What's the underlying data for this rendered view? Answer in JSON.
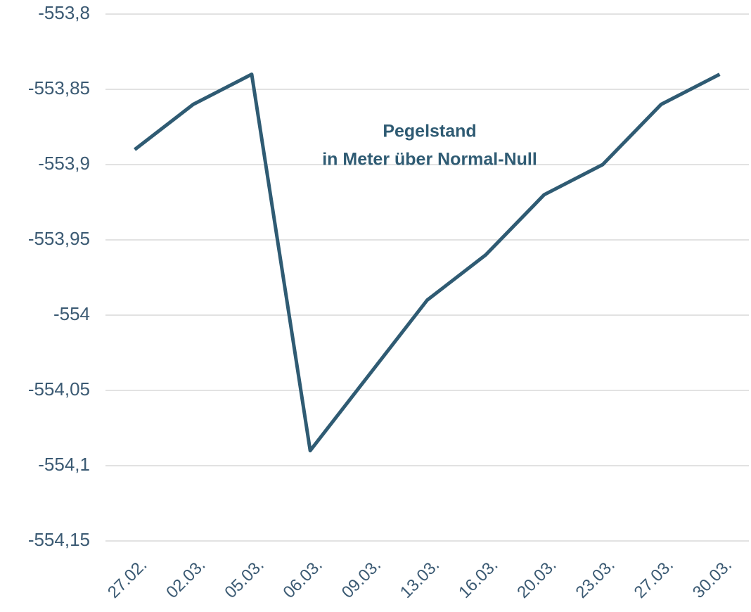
{
  "chart_data": {
    "type": "line",
    "title": "Pegelstand",
    "subtitle": "in Meter über Normal-Null",
    "categories": [
      "27.02.",
      "02.03.",
      "05.03.",
      "06.03.",
      "09.03.",
      "13.03.",
      "16.03.",
      "20.03.",
      "23.03.",
      "27.03.",
      "30.03."
    ],
    "values": [
      -553.89,
      -553.86,
      -553.84,
      -554.09,
      -554.04,
      -553.99,
      -553.96,
      -553.92,
      -553.9,
      -553.86,
      -553.84
    ],
    "color": "#2f5b73",
    "ylim": [
      -554.15,
      -553.8
    ],
    "yticks": [
      {
        "value": -554.15,
        "label": "-554,15"
      },
      {
        "value": -554.1,
        "label": "-554,1"
      },
      {
        "value": -554.05,
        "label": "-554,05"
      },
      -554,
      {
        "value": -553.95,
        "label": "-553,95"
      },
      {
        "value": -553.9,
        "label": "-553,9"
      },
      {
        "value": -553.85,
        "label": "-553,85"
      },
      {
        "value": -553.8,
        "label": "-553,8"
      }
    ],
    "grid": true
  }
}
